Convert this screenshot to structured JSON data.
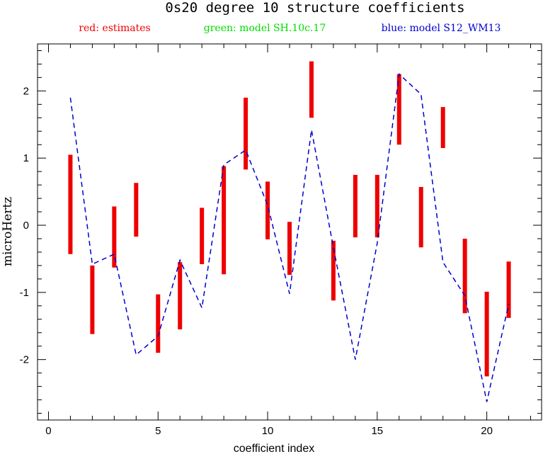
{
  "chart_data": {
    "type": "errorbar-line",
    "title": "0s20 degree 10 structure coefficients",
    "legend": [
      {
        "name": "red: estimates",
        "color": "#ee0000"
      },
      {
        "name": "green: model SH.10c.17",
        "color": "#00dd00"
      },
      {
        "name": "blue: model S12_WM13",
        "color": "#0000cc"
      }
    ],
    "xlabel": "coefficient index",
    "ylabel": "microHertz",
    "xlim": [
      -0.5,
      22.5
    ],
    "ylim": [
      -2.9,
      2.7
    ],
    "xticks": [
      0,
      5,
      10,
      15,
      20
    ],
    "yticks": [
      -2,
      -1,
      0,
      1,
      2
    ],
    "xtick_labels": [
      "0",
      "5",
      "10",
      "15",
      "20"
    ],
    "ytick_labels": [
      "-2",
      "-1",
      "0",
      "1",
      "2"
    ],
    "estimates": [
      {
        "x": 1,
        "low": -0.43,
        "high": 1.05
      },
      {
        "x": 2,
        "low": -1.62,
        "high": -0.6
      },
      {
        "x": 3,
        "low": -0.63,
        "high": 0.28
      },
      {
        "x": 4,
        "low": -0.17,
        "high": 0.63
      },
      {
        "x": 5,
        "low": -1.9,
        "high": -1.03
      },
      {
        "x": 6,
        "low": -1.55,
        "high": -0.55
      },
      {
        "x": 7,
        "low": -0.58,
        "high": 0.26
      },
      {
        "x": 8,
        "low": -0.73,
        "high": 0.88
      },
      {
        "x": 9,
        "low": 0.83,
        "high": 1.9
      },
      {
        "x": 10,
        "low": -0.21,
        "high": 0.65
      },
      {
        "x": 11,
        "low": -0.74,
        "high": 0.05
      },
      {
        "x": 12,
        "low": 1.6,
        "high": 2.44
      },
      {
        "x": 13,
        "low": -1.12,
        "high": -0.23
      },
      {
        "x": 14,
        "low": -0.18,
        "high": 0.75
      },
      {
        "x": 15,
        "low": -0.18,
        "high": 0.75
      },
      {
        "x": 16,
        "low": 1.2,
        "high": 2.25
      },
      {
        "x": 17,
        "low": -0.33,
        "high": 0.57
      },
      {
        "x": 18,
        "low": 1.15,
        "high": 1.76
      },
      {
        "x": 19,
        "low": -1.31,
        "high": -0.2
      },
      {
        "x": 20,
        "low": -2.25,
        "high": -0.99
      },
      {
        "x": 21,
        "low": -1.38,
        "high": -0.54
      }
    ],
    "model_blue": {
      "name": "blue: model S12_WM13",
      "x": [
        1,
        2,
        3,
        4,
        5,
        6,
        7,
        8,
        9,
        10,
        11,
        12,
        13,
        14,
        15,
        16,
        17,
        18,
        19,
        20,
        21
      ],
      "y": [
        1.9,
        -0.58,
        -0.43,
        -1.93,
        -1.65,
        -0.52,
        -1.23,
        0.9,
        1.12,
        0.3,
        -1.02,
        1.42,
        -0.33,
        -2.0,
        -0.27,
        2.25,
        1.95,
        -0.55,
        -1.05,
        -2.63,
        -1.17
      ]
    },
    "grid": false
  }
}
